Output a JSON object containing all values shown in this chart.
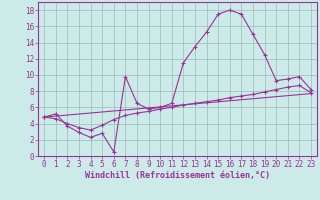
{
  "background_color": "#cceae8",
  "line_color": "#993399",
  "grid_color": "#99bbbb",
  "xlabel": "Windchill (Refroidissement éolien,°C)",
  "xlim": [
    -0.5,
    23.5
  ],
  "ylim": [
    0,
    19
  ],
  "xticks": [
    0,
    1,
    2,
    3,
    4,
    5,
    6,
    7,
    8,
    9,
    10,
    11,
    12,
    13,
    14,
    15,
    16,
    17,
    18,
    19,
    20,
    21,
    22,
    23
  ],
  "yticks": [
    0,
    2,
    4,
    6,
    8,
    10,
    12,
    14,
    16,
    18
  ],
  "curve1_x": [
    0,
    1,
    2,
    3,
    4,
    5,
    6,
    7,
    8,
    9,
    10,
    11,
    12,
    13,
    14,
    15,
    16,
    17,
    18,
    19,
    20,
    21,
    22,
    23
  ],
  "curve1_y": [
    4.8,
    5.2,
    3.7,
    2.9,
    2.3,
    2.8,
    0.5,
    9.8,
    6.5,
    5.8,
    6.0,
    6.5,
    11.5,
    13.5,
    15.3,
    17.5,
    18.0,
    17.5,
    15.0,
    12.5,
    9.3,
    9.5,
    9.8,
    8.2
  ],
  "curve2_x": [
    0,
    1,
    2,
    3,
    4,
    5,
    6,
    7,
    8,
    9,
    10,
    11,
    12,
    13,
    14,
    15,
    16,
    17,
    18,
    19,
    20,
    21,
    22,
    23
  ],
  "curve2_y": [
    4.8,
    4.6,
    4.0,
    3.5,
    3.2,
    3.8,
    4.5,
    5.0,
    5.3,
    5.5,
    5.8,
    6.0,
    6.3,
    6.5,
    6.7,
    6.9,
    7.2,
    7.4,
    7.6,
    7.9,
    8.2,
    8.5,
    8.7,
    7.8
  ],
  "curve3_x": [
    0,
    23
  ],
  "curve3_y": [
    4.8,
    7.7
  ],
  "fontsize_label": 6,
  "fontsize_tick": 5.5
}
